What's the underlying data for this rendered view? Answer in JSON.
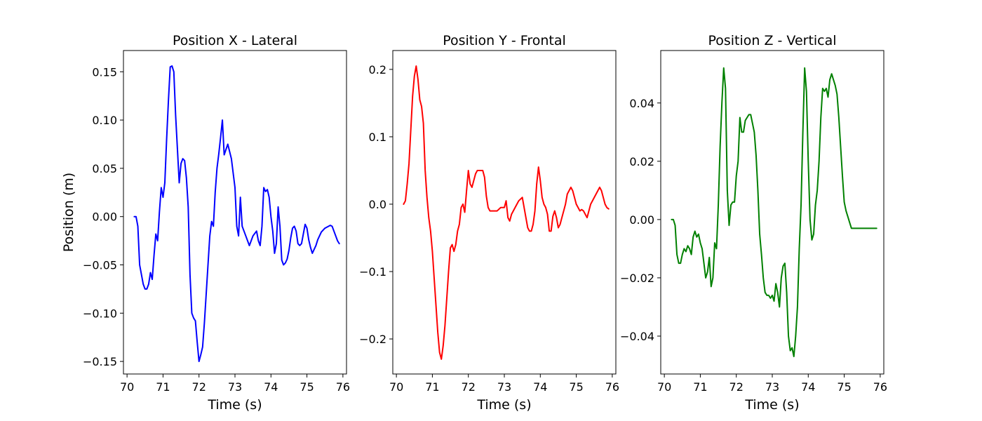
{
  "chart_data": [
    {
      "type": "line",
      "title": "Position X - Lateral",
      "xlabel": "Time (s)",
      "ylabel": "Position (m)",
      "xlim": [
        69.9,
        76.1
      ],
      "ylim": [
        -0.163,
        0.172
      ],
      "xticks": [
        70,
        71,
        72,
        73,
        74,
        75,
        76
      ],
      "xtick_labels": [
        "70",
        "71",
        "72",
        "73",
        "74",
        "75",
        "76"
      ],
      "yticks": [
        -0.15,
        -0.1,
        -0.05,
        0.0,
        0.05,
        0.1,
        0.15
      ],
      "ytick_labels": [
        "−0.15",
        "−0.10",
        "−0.05",
        "0.00",
        "0.05",
        "0.10",
        "0.15"
      ],
      "grid": false,
      "series": [
        {
          "color": "#0000ff",
          "x": [
            70.2,
            70.25,
            70.3,
            70.35,
            70.4,
            70.45,
            70.5,
            70.55,
            70.6,
            70.65,
            70.7,
            70.75,
            70.8,
            70.85,
            70.9,
            70.95,
            71.0,
            71.05,
            71.1,
            71.15,
            71.2,
            71.25,
            71.3,
            71.35,
            71.4,
            71.45,
            71.5,
            71.55,
            71.6,
            71.65,
            71.7,
            71.75,
            71.8,
            71.85,
            71.9,
            71.95,
            72.0,
            72.05,
            72.1,
            72.15,
            72.2,
            72.25,
            72.3,
            72.35,
            72.4,
            72.45,
            72.5,
            72.55,
            72.6,
            72.65,
            72.7,
            72.8,
            72.9,
            73.0,
            73.05,
            73.1,
            73.15,
            73.2,
            73.3,
            73.4,
            73.5,
            73.6,
            73.65,
            73.7,
            73.75,
            73.8,
            73.85,
            73.9,
            73.95,
            74.0,
            74.05,
            74.1,
            74.15,
            74.2,
            74.25,
            74.3,
            74.35,
            74.4,
            74.45,
            74.5,
            74.55,
            74.6,
            74.65,
            74.7,
            74.75,
            74.8,
            74.85,
            74.9,
            74.95,
            75.0,
            75.05,
            75.1,
            75.15,
            75.2,
            75.25,
            75.3,
            75.35,
            75.4,
            75.5,
            75.6,
            75.65,
            75.7,
            75.75,
            75.8,
            75.85,
            75.9
          ],
          "y": [
            0.0,
            0.0,
            -0.01,
            -0.05,
            -0.06,
            -0.07,
            -0.075,
            -0.075,
            -0.07,
            -0.058,
            -0.065,
            -0.04,
            -0.018,
            -0.025,
            0.005,
            0.03,
            0.02,
            0.035,
            0.08,
            0.12,
            0.155,
            0.156,
            0.15,
            0.105,
            0.07,
            0.035,
            0.055,
            0.06,
            0.058,
            0.04,
            0.01,
            -0.06,
            -0.1,
            -0.105,
            -0.108,
            -0.13,
            -0.15,
            -0.143,
            -0.135,
            -0.11,
            -0.08,
            -0.05,
            -0.02,
            -0.005,
            -0.01,
            0.025,
            0.05,
            0.065,
            0.082,
            0.1,
            0.064,
            0.075,
            0.06,
            0.03,
            -0.01,
            -0.02,
            0.02,
            -0.01,
            -0.02,
            -0.03,
            -0.02,
            -0.015,
            -0.025,
            -0.03,
            -0.01,
            0.03,
            0.026,
            0.028,
            0.02,
            0.0,
            -0.015,
            -0.038,
            -0.028,
            0.01,
            -0.01,
            -0.045,
            -0.05,
            -0.048,
            -0.044,
            -0.035,
            -0.022,
            -0.012,
            -0.01,
            -0.015,
            -0.028,
            -0.03,
            -0.028,
            -0.018,
            -0.008,
            -0.012,
            -0.024,
            -0.032,
            -0.038,
            -0.034,
            -0.03,
            -0.024,
            -0.02,
            -0.016,
            -0.012,
            -0.01,
            -0.009,
            -0.01,
            -0.015,
            -0.02,
            -0.025,
            -0.028
          ]
        }
      ]
    },
    {
      "type": "line",
      "title": "Position Y - Frontal",
      "xlabel": "Time (s)",
      "ylabel": "",
      "xlim": [
        69.9,
        76.1
      ],
      "ylim": [
        -0.252,
        0.228
      ],
      "xticks": [
        70,
        71,
        72,
        73,
        74,
        75,
        76
      ],
      "xtick_labels": [
        "70",
        "71",
        "72",
        "73",
        "74",
        "75",
        "76"
      ],
      "yticks": [
        -0.2,
        -0.1,
        0.0,
        0.1,
        0.2
      ],
      "ytick_labels": [
        "−0.2",
        "−0.1",
        "0.0",
        "0.1",
        "0.2"
      ],
      "grid": false,
      "series": [
        {
          "color": "#ff0000",
          "x": [
            70.2,
            70.25,
            70.3,
            70.35,
            70.4,
            70.45,
            70.5,
            70.55,
            70.6,
            70.65,
            70.7,
            70.75,
            70.8,
            70.85,
            70.9,
            70.95,
            71.0,
            71.05,
            71.1,
            71.15,
            71.2,
            71.25,
            71.3,
            71.35,
            71.4,
            71.45,
            71.5,
            71.55,
            71.6,
            71.65,
            71.7,
            71.75,
            71.8,
            71.85,
            71.9,
            71.95,
            72.0,
            72.05,
            72.1,
            72.15,
            72.2,
            72.25,
            72.3,
            72.35,
            72.4,
            72.45,
            72.5,
            72.55,
            72.6,
            72.7,
            72.8,
            72.9,
            73.0,
            73.05,
            73.1,
            73.15,
            73.2,
            73.3,
            73.4,
            73.5,
            73.6,
            73.65,
            73.7,
            73.75,
            73.8,
            73.85,
            73.9,
            73.95,
            74.0,
            74.05,
            74.1,
            74.15,
            74.2,
            74.25,
            74.3,
            74.35,
            74.4,
            74.45,
            74.5,
            74.55,
            74.6,
            74.65,
            74.7,
            74.75,
            74.8,
            74.85,
            74.9,
            74.95,
            75.0,
            75.05,
            75.1,
            75.15,
            75.2,
            75.25,
            75.3,
            75.35,
            75.4,
            75.5,
            75.6,
            75.65,
            75.7,
            75.75,
            75.8,
            75.85,
            75.9
          ],
          "y": [
            0.0,
            0.005,
            0.03,
            0.06,
            0.11,
            0.16,
            0.19,
            0.205,
            0.185,
            0.155,
            0.145,
            0.12,
            0.05,
            0.01,
            -0.02,
            -0.04,
            -0.07,
            -0.11,
            -0.15,
            -0.19,
            -0.22,
            -0.23,
            -0.21,
            -0.18,
            -0.14,
            -0.1,
            -0.065,
            -0.06,
            -0.07,
            -0.06,
            -0.04,
            -0.03,
            -0.005,
            0.0,
            -0.012,
            0.02,
            0.05,
            0.03,
            0.025,
            0.035,
            0.045,
            0.05,
            0.05,
            0.05,
            0.05,
            0.04,
            0.012,
            -0.005,
            -0.01,
            -0.01,
            -0.01,
            -0.005,
            -0.005,
            0.005,
            -0.02,
            -0.025,
            -0.015,
            -0.005,
            0.005,
            0.01,
            -0.02,
            -0.035,
            -0.04,
            -0.04,
            -0.03,
            -0.01,
            0.03,
            0.055,
            0.035,
            0.01,
            0.0,
            -0.005,
            -0.015,
            -0.04,
            -0.04,
            -0.018,
            -0.01,
            -0.02,
            -0.035,
            -0.03,
            -0.02,
            -0.01,
            0.0,
            0.015,
            0.02,
            0.025,
            0.02,
            0.01,
            0.0,
            -0.005,
            -0.01,
            -0.008,
            -0.01,
            -0.015,
            -0.02,
            -0.01,
            0.0,
            0.01,
            0.02,
            0.025,
            0.02,
            0.01,
            0.0,
            -0.005,
            -0.007
          ]
        }
      ]
    },
    {
      "type": "line",
      "title": "Position Z - Vertical",
      "xlabel": "Time (s)",
      "ylabel": "",
      "xlim": [
        69.9,
        76.1
      ],
      "ylim": [
        -0.053,
        0.058
      ],
      "xticks": [
        70,
        71,
        72,
        73,
        74,
        75,
        76
      ],
      "xtick_labels": [
        "70",
        "71",
        "72",
        "73",
        "74",
        "75",
        "76"
      ],
      "yticks": [
        -0.04,
        -0.02,
        0.0,
        0.02,
        0.04
      ],
      "ytick_labels": [
        "−0.04",
        "−0.02",
        "0.00",
        "0.02",
        "0.04"
      ],
      "grid": false,
      "series": [
        {
          "color": "#008000",
          "x": [
            70.2,
            70.25,
            70.3,
            70.35,
            70.4,
            70.45,
            70.5,
            70.55,
            70.6,
            70.65,
            70.7,
            70.75,
            70.8,
            70.85,
            70.9,
            70.95,
            71.0,
            71.05,
            71.1,
            71.15,
            71.2,
            71.25,
            71.3,
            71.35,
            71.4,
            71.45,
            71.5,
            71.55,
            71.6,
            71.65,
            71.7,
            71.75,
            71.8,
            71.85,
            71.9,
            71.95,
            72.0,
            72.05,
            72.1,
            72.15,
            72.2,
            72.25,
            72.3,
            72.35,
            72.4,
            72.45,
            72.5,
            72.55,
            72.6,
            72.65,
            72.7,
            72.75,
            72.8,
            72.85,
            72.9,
            72.95,
            73.0,
            73.05,
            73.1,
            73.15,
            73.2,
            73.25,
            73.3,
            73.35,
            73.4,
            73.45,
            73.5,
            73.55,
            73.6,
            73.65,
            73.7,
            73.75,
            73.8,
            73.85,
            73.9,
            73.95,
            74.0,
            74.05,
            74.1,
            74.15,
            74.2,
            74.25,
            74.3,
            74.35,
            74.4,
            74.45,
            74.5,
            74.55,
            74.6,
            74.65,
            74.7,
            74.75,
            74.8,
            74.85,
            74.9,
            74.95,
            75.0,
            75.05,
            75.1,
            75.15,
            75.2,
            75.25,
            75.3,
            75.35,
            75.4,
            75.45,
            75.5,
            75.55,
            75.6,
            75.65,
            75.7,
            75.75,
            75.8,
            75.85,
            75.9
          ],
          "y": [
            0.0,
            0.0,
            -0.002,
            -0.012,
            -0.015,
            -0.015,
            -0.012,
            -0.01,
            -0.011,
            -0.009,
            -0.01,
            -0.012,
            -0.006,
            -0.004,
            -0.006,
            -0.005,
            -0.008,
            -0.01,
            -0.015,
            -0.02,
            -0.018,
            -0.013,
            -0.023,
            -0.02,
            -0.008,
            -0.01,
            0.005,
            0.025,
            0.04,
            0.052,
            0.045,
            0.01,
            -0.002,
            0.005,
            0.006,
            0.006,
            0.015,
            0.02,
            0.035,
            0.03,
            0.03,
            0.034,
            0.035,
            0.036,
            0.036,
            0.033,
            0.03,
            0.022,
            0.01,
            -0.005,
            -0.012,
            -0.02,
            -0.025,
            -0.026,
            -0.026,
            -0.027,
            -0.026,
            -0.028,
            -0.022,
            -0.025,
            -0.03,
            -0.02,
            -0.016,
            -0.015,
            -0.025,
            -0.04,
            -0.045,
            -0.044,
            -0.047,
            -0.04,
            -0.03,
            -0.01,
            0.005,
            0.03,
            0.052,
            0.044,
            0.02,
            0.0,
            -0.007,
            -0.005,
            0.005,
            0.01,
            0.02,
            0.035,
            0.045,
            0.044,
            0.045,
            0.042,
            0.048,
            0.05,
            0.048,
            0.046,
            0.043,
            0.035,
            0.025,
            0.015,
            0.006,
            0.003,
            0.001,
            -0.001,
            -0.003,
            -0.003,
            -0.003,
            -0.003,
            -0.003,
            -0.003,
            -0.003,
            -0.003,
            -0.003,
            -0.003,
            -0.003,
            -0.003,
            -0.003,
            -0.003,
            -0.003
          ]
        }
      ]
    }
  ]
}
